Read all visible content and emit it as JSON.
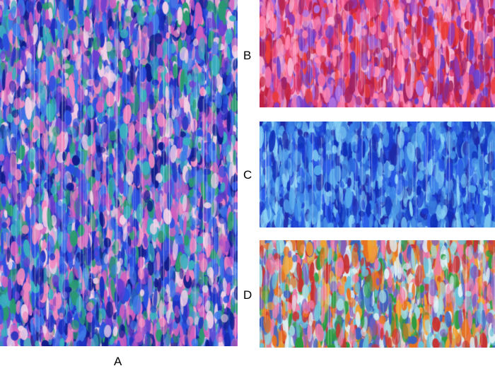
{
  "figure": {
    "panels": [
      {
        "id": "a",
        "label": "A",
        "palette": [
          "#1c2fc0",
          "#2a4fe0",
          "#3f7ae8",
          "#6a3fd0",
          "#d060c0",
          "#f08ac0",
          "#3ab0c0",
          "#2a9a70",
          "#f2d0e6",
          "#0f1a8a"
        ]
      },
      {
        "id": "b",
        "label": "B",
        "palette": [
          "#e2407a",
          "#f070a8",
          "#c02040",
          "#e83a3a",
          "#8a3ac0",
          "#b070e0",
          "#f7b2d2",
          "#6a3fc8",
          "#ff86b0",
          "#a02060"
        ]
      },
      {
        "id": "c",
        "label": "C",
        "palette": [
          "#1a3ad0",
          "#2a5ae8",
          "#3a82e8",
          "#1f2aa8",
          "#56a6ea",
          "#7ac4f0",
          "#2e6ad8",
          "#1030b8",
          "#4a90e2",
          "#8ad0f4"
        ]
      },
      {
        "id": "d",
        "label": "D",
        "palette": [
          "#e87020",
          "#f0a030",
          "#68c0d8",
          "#e0f0f4",
          "#2a9a40",
          "#c83030",
          "#8060c0",
          "#f07aa8",
          "#3a60c0",
          "#a0d8e0"
        ]
      }
    ]
  }
}
